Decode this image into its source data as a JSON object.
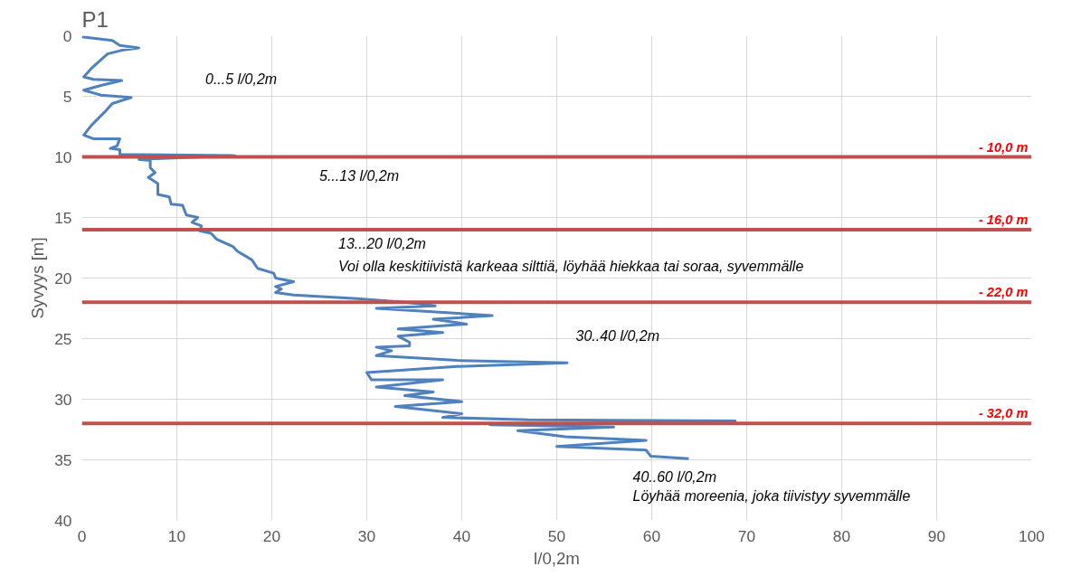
{
  "chart_data": {
    "type": "line",
    "orientation": "horizontal",
    "title": "P1",
    "xlabel": "l/0,2m",
    "ylabel": "Syvyys [m]",
    "xlim": [
      0,
      100
    ],
    "xticks": [
      0,
      10,
      20,
      30,
      40,
      50,
      60,
      70,
      80,
      90,
      100
    ],
    "ylim": [
      40,
      0
    ],
    "yticks": [
      0,
      5,
      10,
      15,
      20,
      25,
      30,
      35,
      40
    ],
    "grid": true,
    "marker": "none",
    "line_style": "solid",
    "series": [
      {
        "color": "#4f81bd",
        "x": [
          0.1,
          0.4,
          0.8,
          1.0,
          1.2,
          1.5,
          2.7,
          3.4,
          3.6,
          3.7,
          4.1,
          4.5,
          4.9,
          5.1,
          5.6,
          6.3,
          7.4,
          8.2,
          8.5,
          8.5,
          9.1,
          9.3,
          9.4,
          9.8,
          9.9,
          10.2,
          10.3,
          10.9,
          11.3,
          11.7,
          12.2,
          13.1,
          13.3,
          13.9,
          14.0,
          14.8,
          15.0,
          15.4,
          15.7,
          16.1,
          16.3,
          16.8,
          17.4,
          17.8,
          18.5,
          19.2,
          19.6,
          20.0,
          20.3,
          20.7,
          20.9,
          21.2,
          21.4,
          21.7,
          22.0,
          22.3,
          22.5,
          22.9,
          23.1,
          23.4,
          23.8,
          24.2,
          24.5,
          24.8,
          25.3,
          25.6,
          25.7,
          26.0,
          26.4,
          26.8,
          27.0,
          27.3,
          27.8,
          28.4,
          28.4,
          29.0,
          29.4,
          29.7,
          30.2,
          30.6,
          31.2,
          31.5,
          31.7,
          31.8,
          32.1,
          32.3,
          32.6,
          33.1,
          33.4,
          33.9,
          34.2,
          34.7,
          34.9
        ],
        "values": [
          0,
          3.2,
          4,
          6,
          4.2,
          2.7,
          1,
          0.2,
          1.2,
          4.2,
          2,
          0.2,
          2,
          5.2,
          3.2,
          2.4,
          1,
          0.2,
          1.2,
          4,
          3.7,
          3,
          4,
          4,
          16.1,
          6,
          7.2,
          7.2,
          7.7,
          7,
          8,
          8,
          9.2,
          9.4,
          10.6,
          11,
          12.2,
          11.6,
          12.6,
          12.4,
          13.6,
          14.2,
          15.9,
          16.4,
          17.9,
          18.5,
          20.2,
          20.4,
          22.3,
          20.4,
          21,
          20.4,
          22.3,
          29,
          34,
          37.2,
          31,
          39.2,
          43.2,
          37,
          40.5,
          33.3,
          38,
          33.3,
          34.5,
          34.5,
          31,
          32.6,
          31,
          39.5,
          51.1,
          39.5,
          30,
          30.5,
          38,
          31,
          37,
          34,
          40,
          33,
          40,
          38,
          47,
          68.8,
          43,
          56,
          45.9,
          50.9,
          59.4,
          50,
          59.4,
          59.9,
          63.9
        ]
      }
    ],
    "ref_lines": [
      {
        "axis": "y",
        "value": 10,
        "label": "- 10,0 m",
        "color": "#c0504d"
      },
      {
        "axis": "y",
        "value": 16,
        "label": "- 16,0 m",
        "color": "#c0504d"
      },
      {
        "axis": "y",
        "value": 22,
        "label": "- 22,0 m",
        "color": "#c0504d"
      },
      {
        "axis": "y",
        "value": 32,
        "label": "- 32,0 m",
        "color": "#c0504d"
      }
    ],
    "annotations": [
      "0...5 l/0,2m",
      "5...13 l/0,2m",
      "13...20 l/0,2m",
      "Voi olla keskitiivistä karkeaa silttiä, löyhää hiekkaa tai soraa, syvemmälle",
      "30..40 l/0,2m",
      "40..60 l/0,2m",
      "Löyhää moreenia, joka tiivistyy syvemmälle"
    ]
  }
}
